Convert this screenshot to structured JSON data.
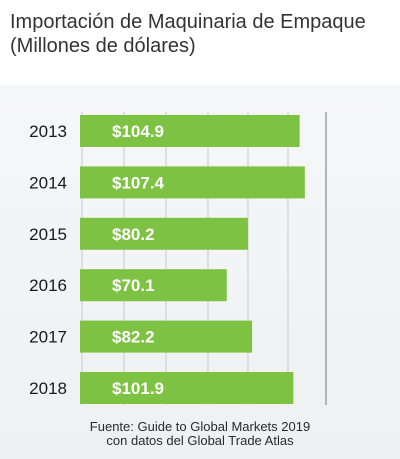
{
  "chart_data": {
    "type": "bar",
    "orientation": "horizontal",
    "title": "Importación de Maquinaria de Empaque",
    "subtitle": "(Millones de dólares)",
    "categories": [
      "2013",
      "2014",
      "2015",
      "2016",
      "2017",
      "2018"
    ],
    "values": [
      104.9,
      107.4,
      80.2,
      70.1,
      82.2,
      101.9
    ],
    "data_labels": [
      "$104.9",
      "$107.4",
      "$80.2",
      "$70.1",
      "$82.2",
      "$101.9"
    ],
    "xlim": [
      0,
      117.5
    ],
    "grid": true,
    "legend": "none",
    "bar_color": "#7dc242",
    "label_color": "#ffffff",
    "grid_color": "#bfbfbf"
  },
  "footer": {
    "line1": "Fuente: Guide to Global Markets 2019",
    "line2": "con datos del Global Trade Atlas"
  }
}
